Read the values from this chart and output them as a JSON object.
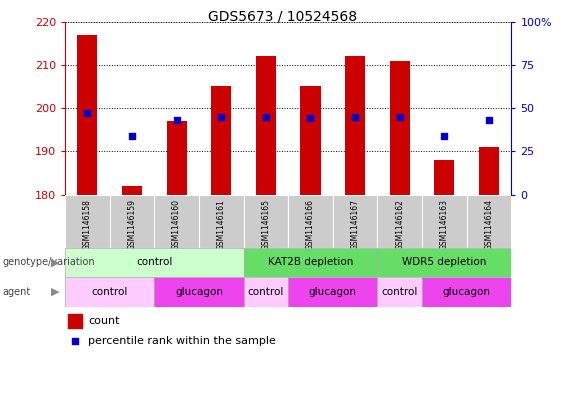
{
  "title": "GDS5673 / 10524568",
  "samples": [
    "GSM1146158",
    "GSM1146159",
    "GSM1146160",
    "GSM1146161",
    "GSM1146165",
    "GSM1146166",
    "GSM1146167",
    "GSM1146162",
    "GSM1146163",
    "GSM1146164"
  ],
  "counts": [
    217,
    182,
    197,
    205,
    212,
    205,
    212,
    211,
    188,
    191
  ],
  "percentile_ranks": [
    47,
    34,
    43,
    45,
    45,
    44,
    45,
    45,
    34,
    43
  ],
  "ylim_left": [
    180,
    220
  ],
  "ylim_right": [
    0,
    100
  ],
  "yticks_left": [
    180,
    190,
    200,
    210,
    220
  ],
  "yticks_right": [
    0,
    25,
    50,
    75,
    100
  ],
  "bar_color": "#cc0000",
  "dot_color": "#0000cc",
  "bar_bottom": 180,
  "genotype_groups": [
    {
      "label": "control",
      "start": 0,
      "end": 4,
      "color": "#ccffcc"
    },
    {
      "label": "KAT2B depletion",
      "start": 4,
      "end": 7,
      "color": "#66dd66"
    },
    {
      "label": "WDR5 depletion",
      "start": 7,
      "end": 10,
      "color": "#66dd66"
    }
  ],
  "agent_groups": [
    {
      "label": "control",
      "start": 0,
      "end": 2,
      "color": "#ffccff"
    },
    {
      "label": "glucagon",
      "start": 2,
      "end": 4,
      "color": "#ee44ee"
    },
    {
      "label": "control",
      "start": 4,
      "end": 5,
      "color": "#ffccff"
    },
    {
      "label": "glucagon",
      "start": 5,
      "end": 7,
      "color": "#ee44ee"
    },
    {
      "label": "control",
      "start": 7,
      "end": 8,
      "color": "#ffccff"
    },
    {
      "label": "glucagon",
      "start": 8,
      "end": 10,
      "color": "#ee44ee"
    }
  ],
  "sample_bg_color": "#cccccc",
  "title_color": "#000000",
  "left_axis_color": "#cc0000",
  "right_axis_color": "#0000cc",
  "left_label_color": "#555555",
  "legend_rect_color": "#cc0000",
  "legend_dot_color": "#0000cc"
}
